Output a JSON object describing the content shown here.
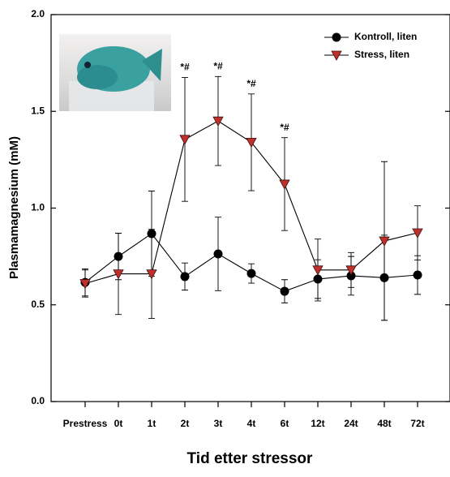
{
  "chart_data": {
    "type": "line",
    "ylabel": "Plasmamagnesium (mM)",
    "xlabel": "Tid etter stressor",
    "categories": [
      "Prestress",
      "0t",
      "1t",
      "2t",
      "3t",
      "4t",
      "6t",
      "12t",
      "24t",
      "48t",
      "72t"
    ],
    "ylim": [
      0,
      2
    ],
    "yticks": [
      {
        "value": 0,
        "label": "0.0"
      },
      {
        "value": 0.5,
        "label": "0.5"
      },
      {
        "value": 1,
        "label": "1.0"
      },
      {
        "value": 1.5,
        "label": "1.5"
      },
      {
        "value": 2,
        "label": "2.0"
      }
    ],
    "legend": "top-right",
    "series": [
      {
        "name": "Kontroll, liten",
        "color": "#000000",
        "marker": "circle",
        "values": [
          0.616,
          0.75,
          0.868,
          0.646,
          0.763,
          0.662,
          0.57,
          0.633,
          0.65,
          0.64,
          0.654
        ],
        "errors": [
          0.07,
          0.12,
          0.22,
          0.07,
          0.19,
          0.05,
          0.06,
          0.1,
          0.1,
          0.22,
          0.1
        ]
      },
      {
        "name": "Stress, liten",
        "color": "#c0302a",
        "marker": "triangle-down",
        "values": [
          0.61,
          0.66,
          0.66,
          1.355,
          1.45,
          1.34,
          1.124,
          0.68,
          0.68,
          0.83,
          0.872
        ],
        "errors": [
          0.07,
          0.21,
          0.23,
          0.32,
          0.23,
          0.25,
          0.24,
          0.16,
          0.09,
          0.41,
          0.14
        ]
      }
    ],
    "annotations": [
      {
        "category": "2t",
        "text": "*#"
      },
      {
        "category": "3t",
        "text": "*#"
      },
      {
        "category": "4t",
        "text": "*#"
      },
      {
        "category": "6t",
        "text": "*#"
      }
    ]
  }
}
